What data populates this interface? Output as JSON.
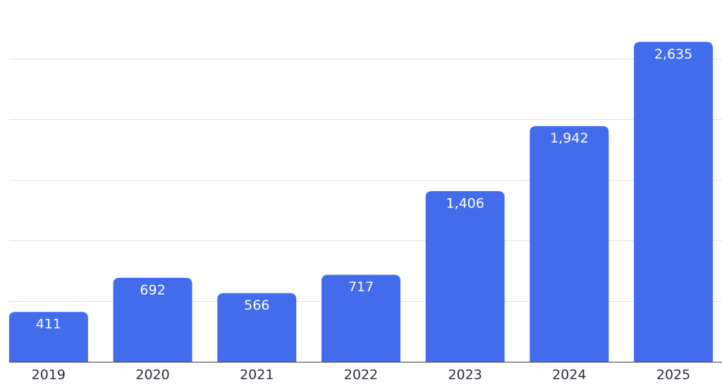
{
  "chart_data": {
    "type": "bar",
    "categories": [
      "2019",
      "2020",
      "2021",
      "2022",
      "2023",
      "2024",
      "2025"
    ],
    "values": [
      411,
      692,
      566,
      717,
      1406,
      1942,
      2635
    ],
    "value_labels": [
      "411",
      "692",
      "566",
      "717",
      "1,406",
      "1,942",
      "2,635"
    ],
    "color": "#436ced",
    "ylim": [
      0,
      2800
    ],
    "yticks": [
      0,
      500,
      1000,
      1500,
      2000,
      2500
    ],
    "grid": true
  }
}
